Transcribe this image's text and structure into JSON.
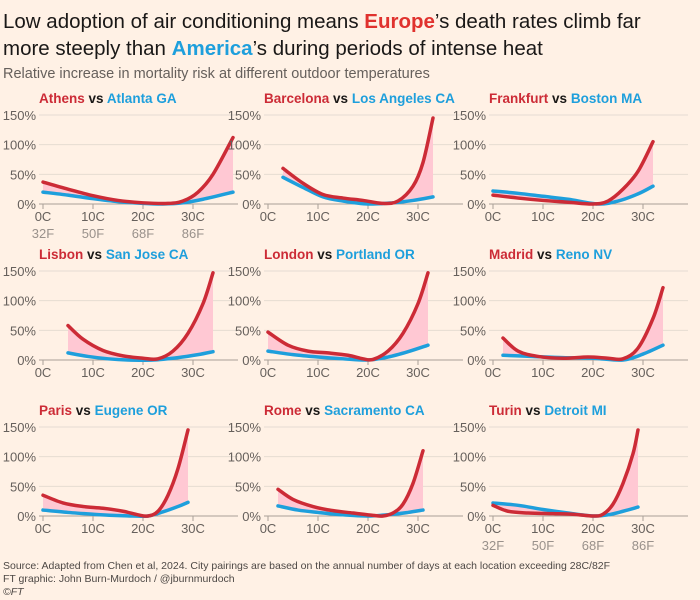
{
  "title": {
    "part1": "Low adoption of air conditioning means ",
    "europe": "Europe",
    "part2": "’s death rates climb far more steeply than ",
    "america": "America",
    "part3": "’s during periods of intense heat"
  },
  "subtitle": "Relative increase in mortality risk at different outdoor temperatures",
  "footer": {
    "source": "Source: Adapted from Chen et al, 2024. City pairings are based on the annual number of days at each location exceeding 28C/82F",
    "credit": "FT graphic: John Burn-Murdoch / @jburnmurdoch",
    "copyright": "©FT"
  },
  "colors": {
    "europe": "#cc2b36",
    "america": "#1e9fdc",
    "gap_fill": "#ffc8d3",
    "background": "#fff1e5"
  },
  "chart_data": {
    "type": "line",
    "ylabel_ticks": [
      "0%",
      "50%",
      "100%",
      "150%"
    ],
    "ylim": [
      0,
      150
    ],
    "xlim": [
      0,
      38
    ],
    "xticks_c": [
      "0C",
      "10C",
      "20C",
      "30C"
    ],
    "xticks_f": [
      "32F",
      "50F",
      "68F",
      "86F"
    ],
    "vs": "vs",
    "panels": [
      {
        "europe": "Athens",
        "america": "Atlanta GA",
        "show_f": true,
        "eu": [
          [
            0,
            37
          ],
          [
            5,
            25
          ],
          [
            10,
            14
          ],
          [
            15,
            6
          ],
          [
            20,
            2
          ],
          [
            25,
            1
          ],
          [
            28,
            5
          ],
          [
            31,
            20
          ],
          [
            34,
            50
          ],
          [
            38,
            112
          ]
        ],
        "us": [
          [
            0,
            20
          ],
          [
            5,
            15
          ],
          [
            10,
            9
          ],
          [
            15,
            4
          ],
          [
            20,
            1
          ],
          [
            24,
            0
          ],
          [
            28,
            2
          ],
          [
            32,
            8
          ],
          [
            38,
            20
          ]
        ]
      },
      {
        "europe": "Barcelona",
        "america": "Los Angeles CA",
        "show_f": false,
        "eu": [
          [
            3,
            60
          ],
          [
            7,
            35
          ],
          [
            11,
            16
          ],
          [
            15,
            10
          ],
          [
            19,
            6
          ],
          [
            23,
            1
          ],
          [
            26,
            5
          ],
          [
            29,
            30
          ],
          [
            31,
            70
          ],
          [
            33,
            145
          ]
        ],
        "us": [
          [
            3,
            45
          ],
          [
            7,
            28
          ],
          [
            11,
            12
          ],
          [
            15,
            5
          ],
          [
            20,
            0
          ],
          [
            25,
            2
          ],
          [
            29,
            6
          ],
          [
            33,
            12
          ]
        ]
      },
      {
        "europe": "Frankfurt",
        "america": "Boston MA",
        "show_f": false,
        "eu": [
          [
            0,
            15
          ],
          [
            5,
            10
          ],
          [
            10,
            6
          ],
          [
            15,
            3
          ],
          [
            20,
            0
          ],
          [
            23,
            5
          ],
          [
            26,
            25
          ],
          [
            29,
            55
          ],
          [
            32,
            105
          ]
        ],
        "us": [
          [
            0,
            22
          ],
          [
            5,
            18
          ],
          [
            10,
            13
          ],
          [
            15,
            8
          ],
          [
            21,
            0
          ],
          [
            25,
            5
          ],
          [
            29,
            17
          ],
          [
            32,
            30
          ]
        ]
      },
      {
        "europe": "Lisbon",
        "america": "San Jose CA",
        "show_f": false,
        "eu": [
          [
            5,
            58
          ],
          [
            8,
            35
          ],
          [
            12,
            16
          ],
          [
            16,
            7
          ],
          [
            20,
            3
          ],
          [
            23,
            2
          ],
          [
            26,
            15
          ],
          [
            29,
            45
          ],
          [
            32,
            95
          ],
          [
            34,
            147
          ]
        ],
        "us": [
          [
            5,
            12
          ],
          [
            9,
            6
          ],
          [
            13,
            2
          ],
          [
            17,
            0
          ],
          [
            22,
            0
          ],
          [
            27,
            4
          ],
          [
            31,
            9
          ],
          [
            34,
            14
          ]
        ]
      },
      {
        "europe": "London",
        "america": "Portland OR",
        "show_f": false,
        "eu": [
          [
            0,
            47
          ],
          [
            4,
            25
          ],
          [
            8,
            15
          ],
          [
            12,
            12
          ],
          [
            16,
            8
          ],
          [
            19,
            2
          ],
          [
            21,
            1
          ],
          [
            24,
            15
          ],
          [
            27,
            45
          ],
          [
            30,
            95
          ],
          [
            32,
            147
          ]
        ],
        "us": [
          [
            0,
            15
          ],
          [
            5,
            9
          ],
          [
            10,
            5
          ],
          [
            15,
            2
          ],
          [
            20,
            0
          ],
          [
            24,
            5
          ],
          [
            28,
            14
          ],
          [
            32,
            25
          ]
        ]
      },
      {
        "europe": "Madrid",
        "america": "Reno NV",
        "show_f": false,
        "eu": [
          [
            2,
            37
          ],
          [
            5,
            15
          ],
          [
            9,
            6
          ],
          [
            14,
            3
          ],
          [
            19,
            5
          ],
          [
            23,
            3
          ],
          [
            26,
            2
          ],
          [
            29,
            20
          ],
          [
            32,
            70
          ],
          [
            34,
            122
          ]
        ],
        "us": [
          [
            2,
            8
          ],
          [
            8,
            6
          ],
          [
            14,
            4
          ],
          [
            20,
            3
          ],
          [
            26,
            0
          ],
          [
            30,
            10
          ],
          [
            34,
            25
          ]
        ]
      },
      {
        "europe": "Paris",
        "america": "Eugene OR",
        "show_f": false,
        "eu": [
          [
            0,
            35
          ],
          [
            4,
            22
          ],
          [
            8,
            16
          ],
          [
            12,
            13
          ],
          [
            16,
            8
          ],
          [
            19,
            2
          ],
          [
            21,
            0
          ],
          [
            23,
            8
          ],
          [
            25,
            35
          ],
          [
            27,
            80
          ],
          [
            29,
            145
          ]
        ],
        "us": [
          [
            0,
            10
          ],
          [
            5,
            6
          ],
          [
            10,
            3
          ],
          [
            14,
            1
          ],
          [
            18,
            0
          ],
          [
            21,
            0
          ],
          [
            24,
            7
          ],
          [
            27,
            16
          ],
          [
            29,
            23
          ]
        ]
      },
      {
        "europe": "Rome",
        "america": "Sacramento CA",
        "show_f": false,
        "eu": [
          [
            2,
            45
          ],
          [
            5,
            28
          ],
          [
            9,
            16
          ],
          [
            13,
            9
          ],
          [
            17,
            5
          ],
          [
            21,
            1
          ],
          [
            23,
            0
          ],
          [
            25,
            5
          ],
          [
            27,
            20
          ],
          [
            29,
            55
          ],
          [
            31,
            110
          ]
        ],
        "us": [
          [
            2,
            17
          ],
          [
            6,
            10
          ],
          [
            10,
            6
          ],
          [
            15,
            2
          ],
          [
            20,
            0
          ],
          [
            25,
            3
          ],
          [
            28,
            6
          ],
          [
            31,
            10
          ]
        ]
      },
      {
        "europe": "Turin",
        "america": "Detroit MI",
        "show_f": true,
        "eu": [
          [
            0,
            18
          ],
          [
            3,
            8
          ],
          [
            7,
            5
          ],
          [
            12,
            4
          ],
          [
            16,
            3
          ],
          [
            20,
            0
          ],
          [
            22,
            3
          ],
          [
            24,
            20
          ],
          [
            26,
            55
          ],
          [
            28,
            105
          ],
          [
            29,
            145
          ]
        ],
        "us": [
          [
            0,
            22
          ],
          [
            5,
            18
          ],
          [
            10,
            11
          ],
          [
            15,
            5
          ],
          [
            20,
            0
          ],
          [
            23,
            2
          ],
          [
            26,
            8
          ],
          [
            29,
            15
          ]
        ]
      }
    ]
  }
}
